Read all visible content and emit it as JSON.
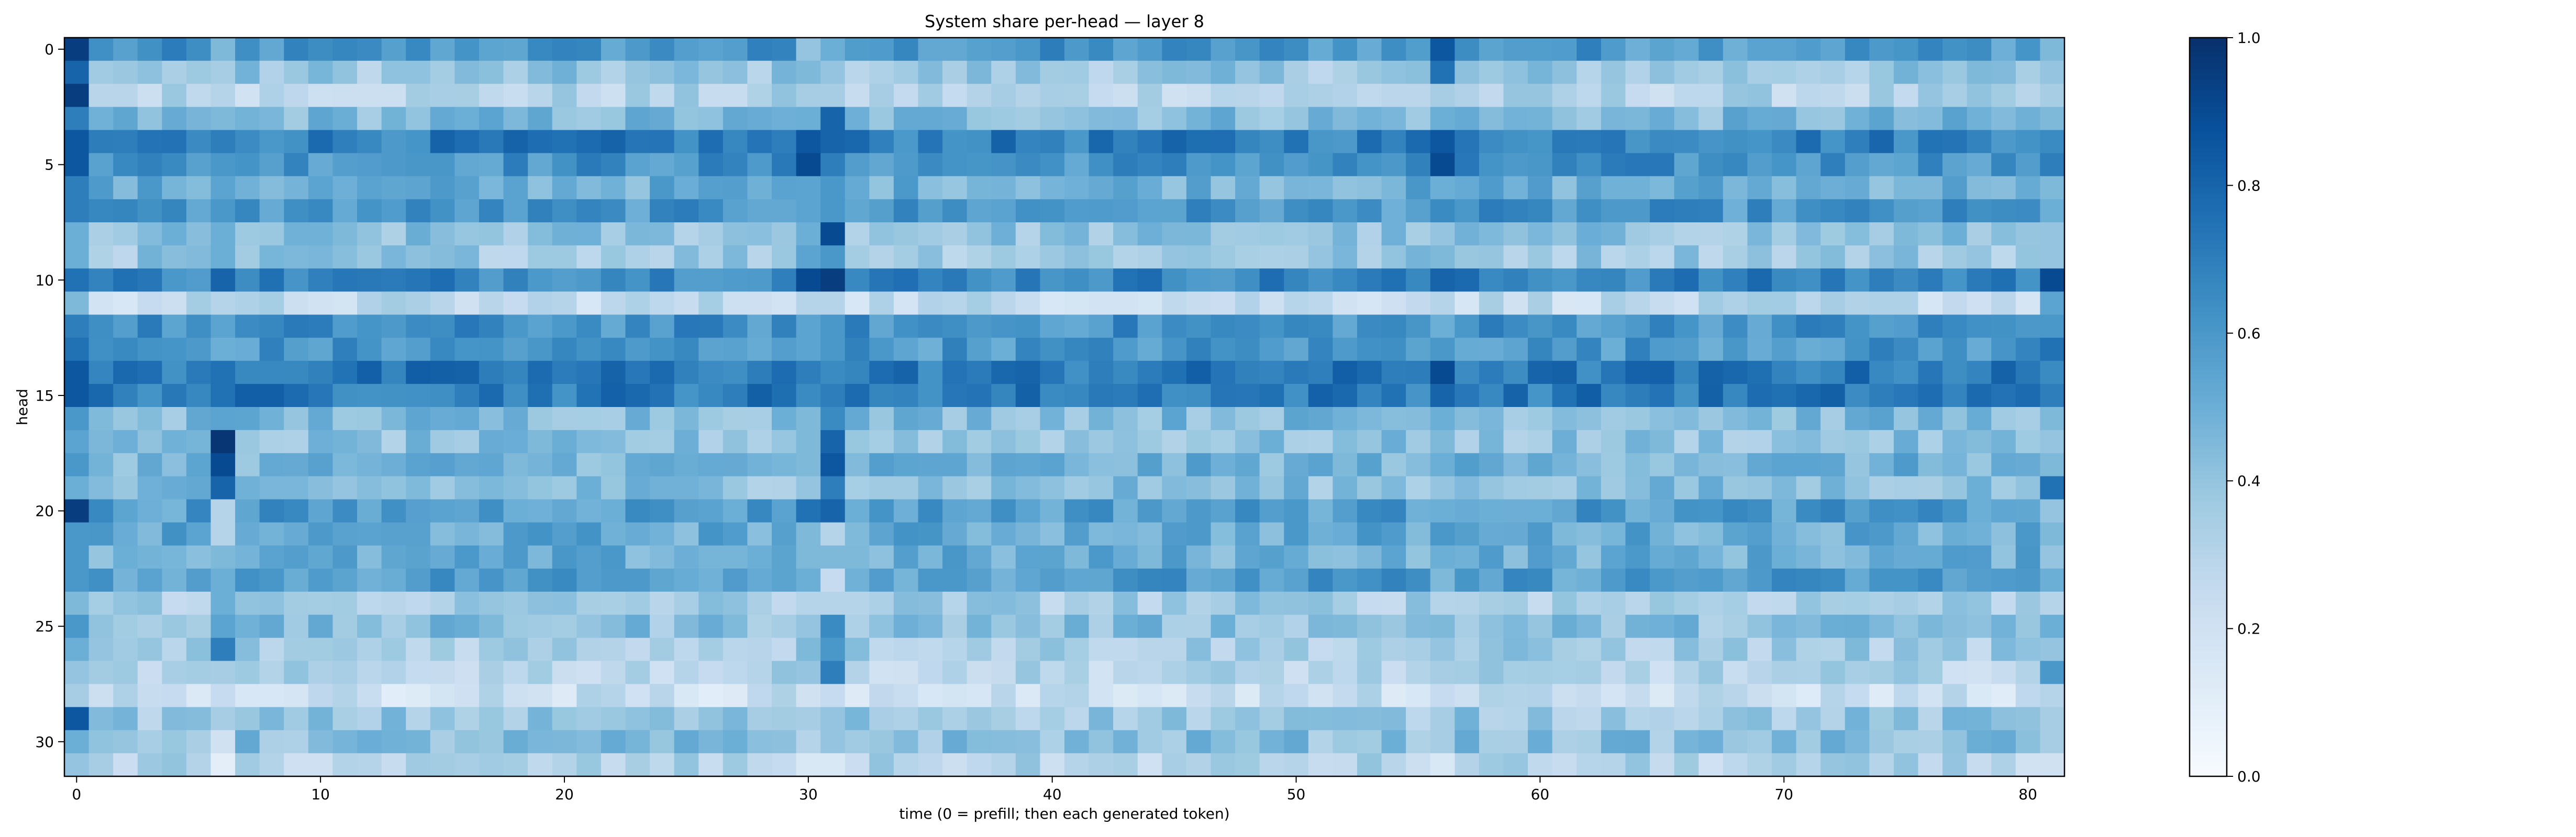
{
  "chart_data": {
    "type": "heatmap",
    "title": "System share per-head — layer 8",
    "xlabel": "time (0 = prefill; then each generated token)",
    "ylabel": "head",
    "x_range": [
      0,
      81
    ],
    "y_range": [
      0,
      31
    ],
    "x_ticks": [
      0,
      10,
      20,
      30,
      40,
      50,
      60,
      70,
      80
    ],
    "y_ticks": [
      0,
      5,
      10,
      15,
      20,
      25,
      30
    ],
    "n_cols": 82,
    "n_rows": 32,
    "colormap": "Blues",
    "value_range": [
      0,
      1
    ],
    "colorbar": {
      "ticks": [
        "0.0",
        "0.2",
        "0.4",
        "0.6",
        "0.8",
        "1.0"
      ],
      "values": [
        0,
        0.2,
        0.4,
        0.6,
        0.8,
        1.0
      ],
      "placement": "right"
    },
    "row_base": [
      0.6,
      0.38,
      0.3,
      0.45,
      0.7,
      0.62,
      0.5,
      0.6,
      0.4,
      0.38,
      0.68,
      0.26,
      0.62,
      0.6,
      0.72,
      0.72,
      0.45,
      0.4,
      0.48,
      0.42,
      0.58,
      0.52,
      0.5,
      0.58,
      0.35,
      0.42,
      0.35,
      0.3,
      0.22,
      0.38,
      0.42,
      0.3
    ],
    "col_adjust": {
      "0": [
        0.95,
        0.8,
        0.95,
        0.7,
        0.85,
        0.85,
        0.7,
        0.7,
        0.5,
        0.5,
        0.75,
        0.45,
        0.7,
        0.75,
        0.85,
        0.85,
        0.6,
        0.55,
        0.6,
        0.5,
        0.95,
        0.6,
        0.6,
        0.6,
        0.45,
        0.6,
        0.5,
        0.4,
        0.35,
        0.85,
        0.5,
        0.4
      ],
      "6": [
        0.45,
        0.35,
        0.3,
        0.45,
        0.7,
        0.6,
        0.55,
        0.6,
        0.5,
        0.5,
        0.8,
        0.3,
        0.55,
        0.5,
        0.75,
        0.75,
        0.55,
        0.98,
        0.9,
        0.8,
        0.3,
        0.3,
        0.45,
        0.5,
        0.5,
        0.55,
        0.7,
        0.35,
        0.25,
        0.35,
        0.2,
        0.1
      ],
      "30": [
        0.4,
        0.45,
        0.35,
        0.5,
        0.85,
        0.9,
        0.55,
        0.55,
        0.5,
        0.55,
        0.9,
        0.3,
        0.55,
        0.55,
        0.7,
        0.65,
        0.45,
        0.45,
        0.45,
        0.4,
        0.75,
        0.45,
        0.45,
        0.5,
        0.3,
        0.4,
        0.45,
        0.4,
        0.2,
        0.35,
        0.3,
        0.15
      ],
      "31": [
        0.5,
        0.4,
        0.35,
        0.8,
        0.8,
        0.7,
        0.6,
        0.6,
        0.9,
        0.6,
        0.95,
        0.3,
        0.6,
        0.6,
        0.65,
        0.7,
        0.65,
        0.8,
        0.85,
        0.7,
        0.8,
        0.3,
        0.45,
        0.25,
        0.3,
        0.65,
        0.6,
        0.7,
        0.25,
        0.4,
        0.4,
        0.15
      ],
      "56": [
        0.85,
        0.75,
        0.35,
        0.5,
        0.85,
        0.9,
        0.5,
        0.65,
        0.4,
        0.45,
        0.8,
        0.3,
        0.5,
        0.6,
        0.9,
        0.8,
        0.5,
        0.45,
        0.5,
        0.4,
        0.5,
        0.6,
        0.5,
        0.45,
        0.3,
        0.45,
        0.4,
        0.35,
        0.25,
        0.35,
        0.35,
        0.15
      ],
      "81": [
        0.45,
        0.4,
        0.35,
        0.45,
        0.65,
        0.7,
        0.45,
        0.5,
        0.4,
        0.4,
        0.9,
        0.55,
        0.6,
        0.75,
        0.65,
        0.7,
        0.45,
        0.4,
        0.45,
        0.75,
        0.4,
        0.45,
        0.4,
        0.5,
        0.3,
        0.5,
        0.4,
        0.6,
        0.3,
        0.35,
        0.35,
        0.2
      ]
    }
  }
}
